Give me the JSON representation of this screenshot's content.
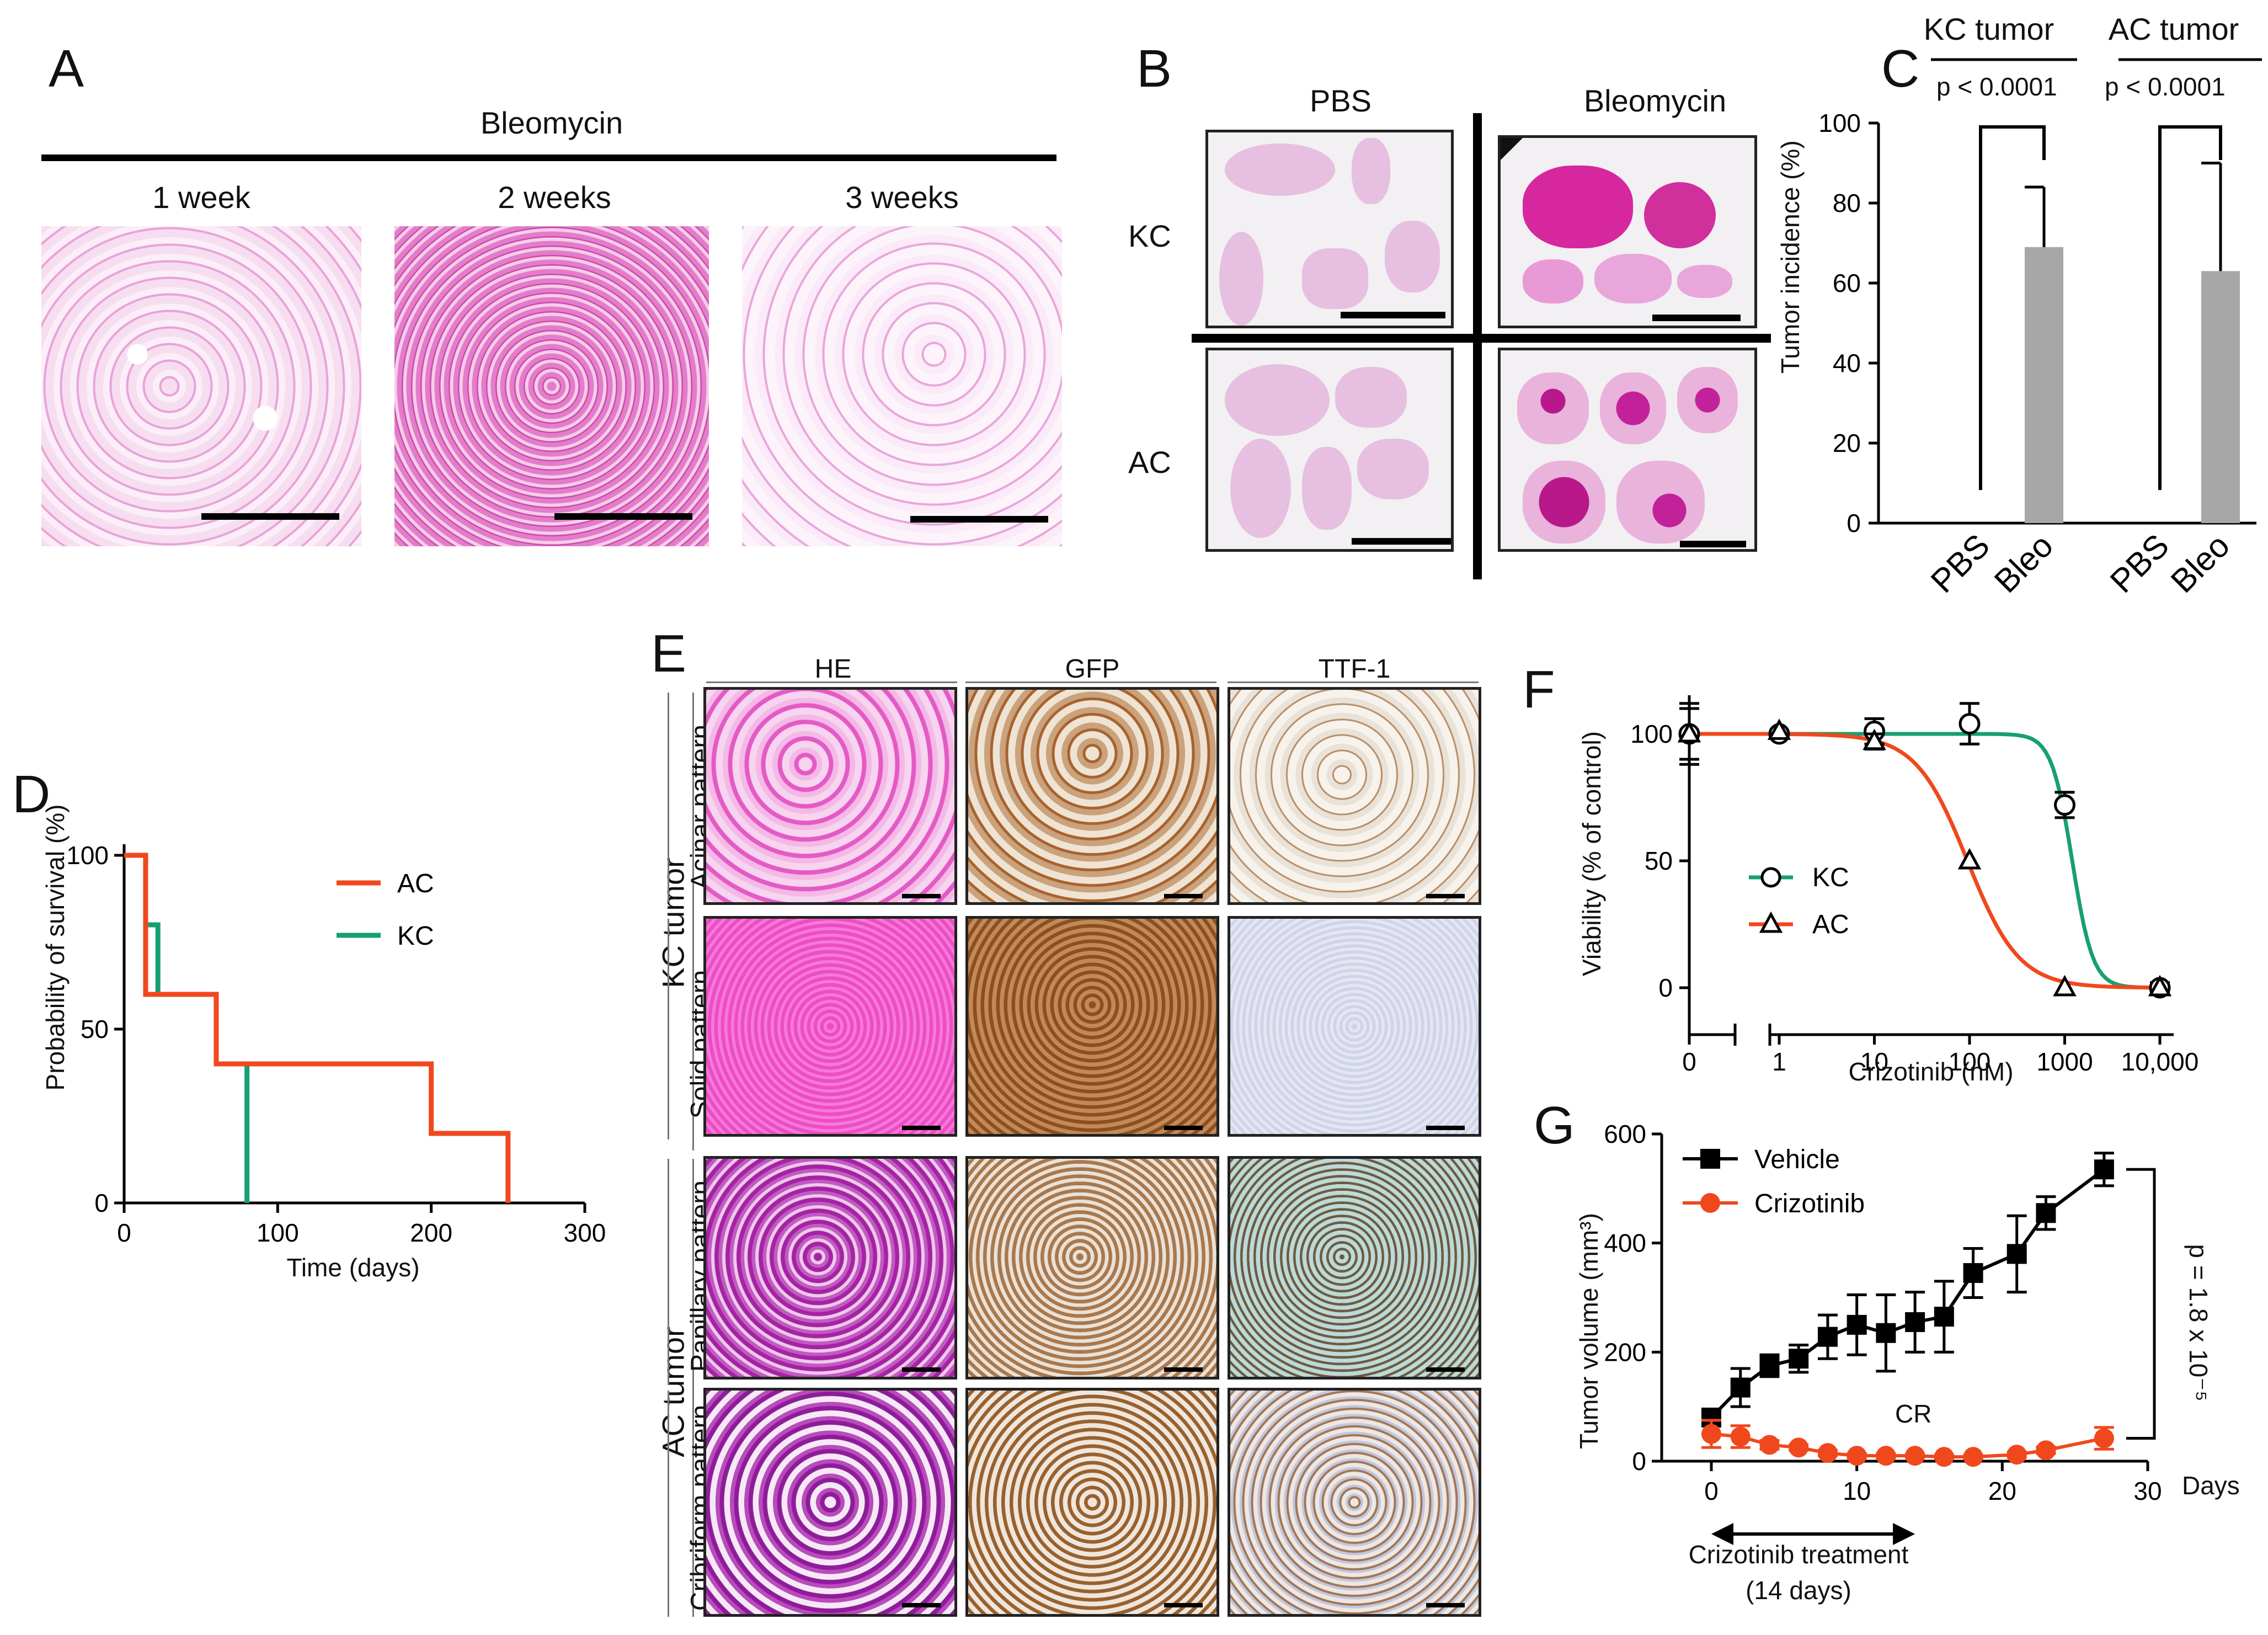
{
  "colors": {
    "he_pink": "#e87ad0",
    "he_dark": "#b0208f",
    "ihc_brown": "#9a5a2a",
    "ihc_light": "#e8dccb",
    "ttf_blue": "#c9d3e6",
    "ac_red": "#f0481d",
    "kc_green": "#17a06d",
    "bar_gray": "#a7a7a7"
  },
  "panelA": {
    "label": "A",
    "treatment": "Bleomycin",
    "timepoints": [
      "1 week",
      "2 weeks",
      "3 weeks"
    ]
  },
  "panelB": {
    "label": "B",
    "columns": [
      "PBS",
      "Bleomycin"
    ],
    "rows": [
      "KC",
      "AC"
    ]
  },
  "panelC": {
    "label": "C",
    "groups": [
      "KC tumor",
      "AC tumor"
    ],
    "pvalues": [
      "p < 0.0001",
      "p < 0.0001"
    ],
    "ylabel": "Tumor incidence (%)",
    "ytick_labels": [
      "0",
      "20",
      "40",
      "60",
      "80",
      "100"
    ],
    "xtick_labels": [
      "PBS",
      "Bleo",
      "PBS",
      "Bleo"
    ]
  },
  "panelD": {
    "label": "D",
    "ylabel": "Probability of survival (%)",
    "xlabel": "Time (days)",
    "legend": [
      "AC",
      "KC"
    ],
    "ytick_labels": [
      "0",
      "50",
      "100"
    ],
    "xtick_labels": [
      "0",
      "100",
      "200",
      "300"
    ]
  },
  "panelE": {
    "label": "E",
    "columns": [
      "HE",
      "GFP",
      "TTF-1"
    ],
    "groups": [
      "KC tumor",
      "AC tumor"
    ],
    "row_labels": [
      "Acinar pattern",
      "Solid pattern",
      "Papillary pattern",
      "Cribriform pattern"
    ]
  },
  "panelF": {
    "label": "F",
    "ylabel": "Viability (% of control)",
    "xlabel": "Crizotinib (nM)",
    "legend": [
      "KC",
      "AC"
    ],
    "ytick_labels": [
      "0",
      "50",
      "100"
    ],
    "xtick_labels": [
      "0",
      "1",
      "10",
      "100",
      "1000",
      "10,000"
    ]
  },
  "panelG": {
    "label": "G",
    "ylabel": "Tumor volume (mm³)",
    "xlabel": "Days",
    "legend": [
      "Vehicle",
      "Crizotinib"
    ],
    "ytick_labels": [
      "0",
      "200",
      "400",
      "600"
    ],
    "xtick_labels": [
      "0",
      "10",
      "20",
      "30"
    ],
    "cr_label": "CR",
    "pvalue": "p = 1.8 x 10⁻⁵",
    "treatment_label_1": "Crizotinib treatment",
    "treatment_label_2": "(14 days)"
  },
  "chart_data": [
    {
      "type": "bar",
      "panel": "C",
      "ylabel": "Tumor incidence (%)",
      "ylim": [
        0,
        100
      ],
      "groups": [
        "KC tumor",
        "AC tumor"
      ],
      "categories": [
        "PBS",
        "Bleo",
        "PBS",
        "Bleo"
      ],
      "values": [
        0,
        69,
        0,
        63
      ],
      "errors": [
        0,
        15,
        0,
        27
      ]
    },
    {
      "type": "line",
      "panel": "D",
      "xlabel": "Time (days)",
      "ylabel": "Probability of survival (%)",
      "xlim": [
        0,
        300
      ],
      "ylim": [
        0,
        100
      ],
      "series": [
        {
          "name": "AC",
          "step_x": [
            0,
            14,
            14,
            60,
            60,
            200,
            200,
            250,
            250
          ],
          "step_y": [
            100,
            100,
            60,
            60,
            40,
            40,
            20,
            20,
            0
          ]
        },
        {
          "name": "KC",
          "step_x": [
            0,
            14,
            14,
            22,
            22,
            60,
            60,
            80,
            80
          ],
          "step_y": [
            100,
            100,
            80,
            80,
            60,
            60,
            40,
            40,
            0
          ]
        }
      ]
    },
    {
      "type": "scatter",
      "panel": "F",
      "xlabel": "Crizotinib (nM)",
      "ylabel": "Viability (% of control)",
      "xscale": "log",
      "ylim": [
        0,
        100
      ],
      "series": [
        {
          "name": "KC",
          "x": [
            0,
            1,
            10,
            100,
            1000,
            10000
          ],
          "y": [
            100,
            100,
            101,
            104,
            72,
            0
          ],
          "err": [
            10,
            0,
            5,
            8,
            5,
            2
          ],
          "ic50": 1200
        },
        {
          "name": "AC",
          "x": [
            0,
            1,
            10,
            100,
            1000,
            10000
          ],
          "y": [
            100,
            101,
            97,
            50,
            0,
            0
          ],
          "err": [
            12,
            0,
            3,
            0,
            0,
            0
          ],
          "ic50": 95
        }
      ]
    },
    {
      "type": "line",
      "panel": "G",
      "xlabel": "Days",
      "ylabel": "Tumor volume (mm³)",
      "xlim": [
        0,
        30
      ],
      "ylim": [
        0,
        600
      ],
      "series": [
        {
          "name": "Vehicle",
          "x": [
            0,
            2,
            4,
            6,
            8,
            10,
            12,
            14,
            16,
            18,
            21,
            23,
            27
          ],
          "y": [
            80,
            135,
            175,
            188,
            228,
            250,
            235,
            255,
            265,
            345,
            380,
            455,
            535
          ],
          "err": [
            15,
            35,
            20,
            25,
            40,
            55,
            70,
            55,
            65,
            45,
            70,
            30,
            30
          ]
        },
        {
          "name": "Crizotinib",
          "x": [
            0,
            2,
            4,
            6,
            8,
            10,
            12,
            14,
            16,
            18,
            21,
            23,
            27
          ],
          "y": [
            50,
            45,
            30,
            25,
            15,
            10,
            10,
            10,
            8,
            8,
            12,
            20,
            42
          ],
          "err": [
            25,
            20,
            8,
            5,
            5,
            4,
            4,
            3,
            3,
            3,
            5,
            6,
            20
          ]
        }
      ]
    }
  ]
}
